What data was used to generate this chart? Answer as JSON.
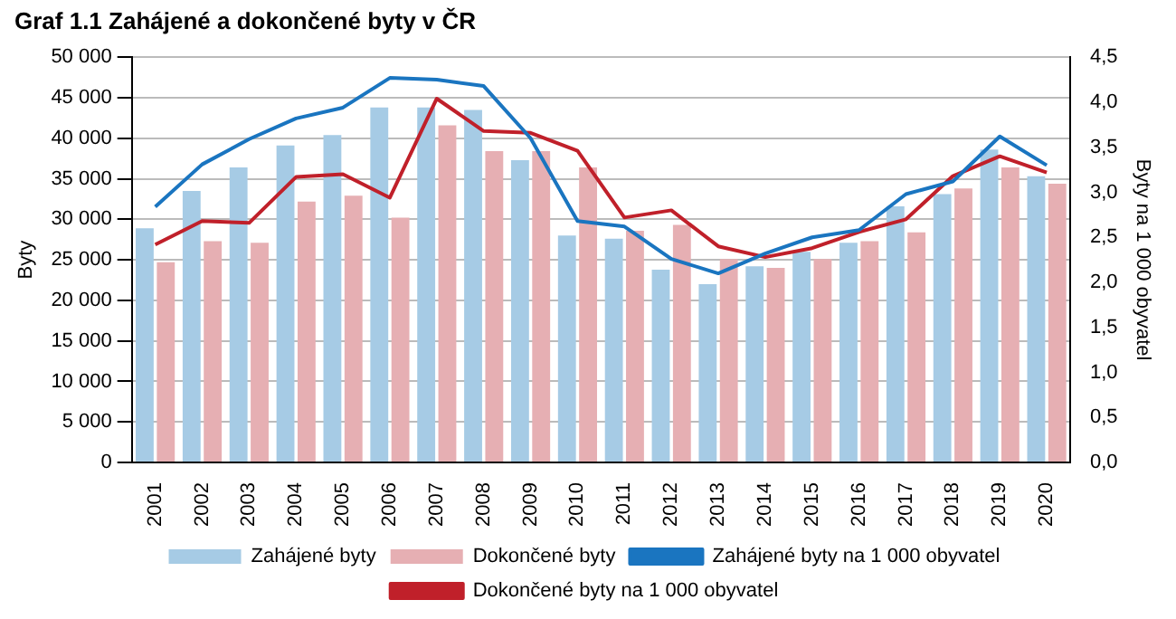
{
  "chart_data": {
    "type": "bar",
    "title": "Graf 1.1  Zahájené a dokončené byty v ČR",
    "ylabel": "Byty",
    "y2label": "Byty na 1 000 obyvatel",
    "categories": [
      "2001",
      "2002",
      "2003",
      "2004",
      "2005",
      "2006",
      "2007",
      "2008",
      "2009",
      "2010",
      "2011",
      "2012",
      "2013",
      "2014",
      "2015",
      "2016",
      "2017",
      "2018",
      "2019",
      "2020"
    ],
    "series": [
      {
        "name": "Zahájené byty",
        "color": "#a6cbe5",
        "values": [
          28900,
          33500,
          36400,
          39100,
          40400,
          43800,
          43800,
          43500,
          37300,
          28000,
          27600,
          23800,
          22000,
          24200,
          26000,
          27100,
          31600,
          33100,
          38600,
          35300
        ]
      },
      {
        "name": "Dokončené byty",
        "color": "#e6afb3",
        "values": [
          24700,
          27300,
          27100,
          32200,
          32900,
          30200,
          41600,
          38400,
          38400,
          36400,
          28600,
          29300,
          25100,
          24000,
          25100,
          27300,
          28400,
          33800,
          36400,
          34400
        ]
      },
      {
        "name": "Zahájené byty na 1 000 obyvatel",
        "type": "line",
        "axis": "y2",
        "color": "#1a75c0",
        "values": [
          2.84,
          3.31,
          3.59,
          3.82,
          3.94,
          4.27,
          4.25,
          4.18,
          3.6,
          2.68,
          2.62,
          2.26,
          2.1,
          2.32,
          2.5,
          2.58,
          2.98,
          3.12,
          3.62,
          3.3
        ]
      },
      {
        "name": "Dokončené byty na 1 000 obyvatel",
        "type": "line",
        "axis": "y2",
        "color": "#c0202a",
        "values": [
          2.42,
          2.68,
          2.66,
          3.17,
          3.2,
          2.94,
          4.04,
          3.68,
          3.66,
          3.46,
          2.72,
          2.8,
          2.4,
          2.28,
          2.38,
          2.56,
          2.7,
          3.18,
          3.4,
          3.22
        ]
      }
    ],
    "ylim": [
      0,
      50000
    ],
    "yticks": [
      {
        "value": 0,
        "label": "0"
      },
      {
        "value": 5000,
        "label": "5 000"
      },
      {
        "value": 10000,
        "label": "10 000"
      },
      {
        "value": 15000,
        "label": "15 000"
      },
      {
        "value": 20000,
        "label": "20 000"
      },
      {
        "value": 25000,
        "label": "25 000"
      },
      {
        "value": 30000,
        "label": "30 000"
      },
      {
        "value": 35000,
        "label": "35 000"
      },
      {
        "value": 40000,
        "label": "40 000"
      },
      {
        "value": 45000,
        "label": "45 000"
      },
      {
        "value": 50000,
        "label": "50 000"
      }
    ],
    "y2lim": [
      0,
      4.5
    ],
    "y2ticks": [
      {
        "value": 0,
        "label": "0,0"
      },
      {
        "value": 0.5,
        "label": "0,5"
      },
      {
        "value": 1,
        "label": "1,0"
      },
      {
        "value": 1.5,
        "label": "1,5"
      },
      {
        "value": 2,
        "label": "2,0"
      },
      {
        "value": 2.5,
        "label": "2,5"
      },
      {
        "value": 3,
        "label": "3,0"
      },
      {
        "value": 3.5,
        "label": "3,5"
      },
      {
        "value": 4,
        "label": "4,0"
      },
      {
        "value": 4.5,
        "label": "4,5"
      }
    ],
    "grid": "y",
    "legend": "bottom",
    "marker": "none",
    "line_style": "solid"
  }
}
